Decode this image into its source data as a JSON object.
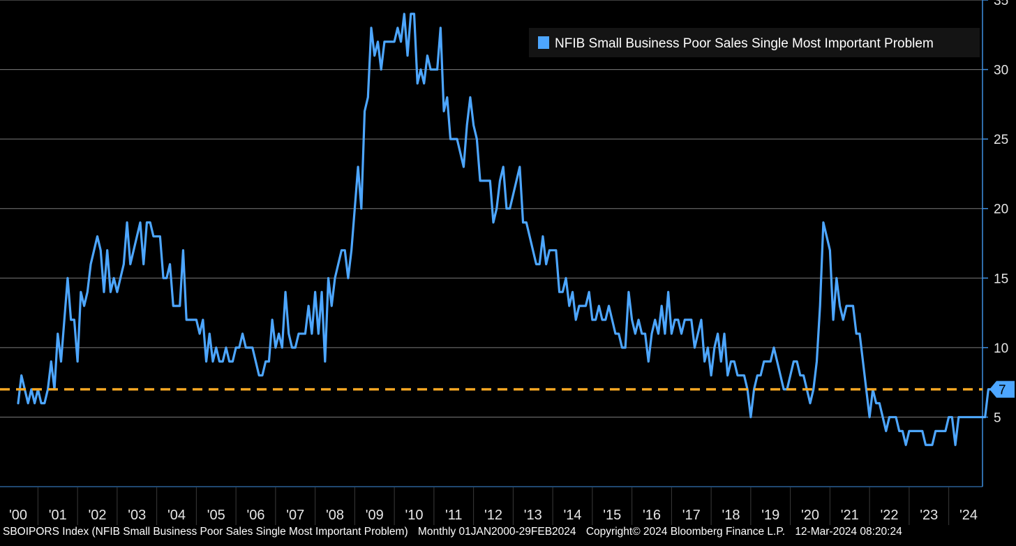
{
  "footer": {
    "ticker": "SBOIPORS Index (NFIB Small Business Poor Sales Single Most Important Problem)",
    "period": "Monthly 01JAN2000-29FEB2024",
    "copyright": "Copyright© 2024 Bloomberg Finance L.P.",
    "timestamp": "12-Mar-2024 08:20:24"
  },
  "colors": {
    "background": "#000000",
    "series": "#4da6ff",
    "reference_line": "#f5a623",
    "grid": "#9a9a9a",
    "axis": "#3f8fe0"
  },
  "chart_data": {
    "type": "line",
    "title": "",
    "xlabel": "",
    "ylabel": "",
    "grid": true,
    "legend_position": "top-right",
    "ylim": [
      0,
      35
    ],
    "y_ticks": [
      5,
      10,
      15,
      20,
      25,
      30,
      35
    ],
    "x_tick_labels": [
      "'00",
      "'01",
      "'02",
      "'03",
      "'04",
      "'05",
      "'06",
      "'07",
      "'08",
      "'09",
      "'10",
      "'11",
      "'12",
      "'13",
      "'14",
      "'15",
      "'16",
      "'17",
      "'18",
      "'19",
      "'20",
      "'21",
      "'22",
      "'23",
      "'24"
    ],
    "reference_line": {
      "value": 7,
      "label": "7",
      "style": "dashed"
    },
    "series": [
      {
        "name": "NFIB Small Business Poor Sales Single Most Important Problem",
        "start": "2000-01",
        "end": "2024-02",
        "frequency": "monthly",
        "values": [
          6,
          8,
          7,
          6,
          7,
          6,
          7,
          6,
          6,
          7,
          9,
          7,
          11,
          9,
          12,
          15,
          12,
          12,
          9,
          14,
          13,
          14,
          16,
          17,
          18,
          17,
          14,
          17,
          14,
          15,
          14,
          15,
          16,
          19,
          16,
          17,
          18,
          19,
          16,
          19,
          19,
          18,
          18,
          18,
          15,
          15,
          16,
          13,
          13,
          13,
          17,
          12,
          12,
          12,
          12,
          11,
          12,
          9,
          11,
          9,
          10,
          9,
          9,
          10,
          9,
          9,
          10,
          10,
          11,
          10,
          10,
          10,
          9,
          8,
          8,
          9,
          9,
          12,
          10,
          11,
          10,
          14,
          11,
          10,
          10,
          11,
          11,
          11,
          13,
          11,
          14,
          11,
          14,
          9,
          15,
          13,
          15,
          16,
          17,
          17,
          15,
          17,
          20,
          23,
          20,
          27,
          28,
          33,
          31,
          32,
          30,
          32,
          32,
          32,
          32,
          33,
          32,
          34,
          31,
          34,
          34,
          29,
          30,
          29,
          31,
          30,
          30,
          30,
          33,
          27,
          28,
          25,
          25,
          25,
          24,
          23,
          26,
          28,
          26,
          25,
          22,
          22,
          22,
          22,
          19,
          20,
          22,
          23,
          20,
          20,
          21,
          22,
          23,
          19,
          19,
          18,
          17,
          16,
          16,
          18,
          16,
          17,
          17,
          17,
          14,
          14,
          15,
          13,
          14,
          12,
          13,
          13,
          13,
          14,
          12,
          12,
          13,
          12,
          12,
          13,
          12,
          11,
          11,
          10,
          10,
          14,
          12,
          11,
          12,
          11,
          11,
          9,
          11,
          12,
          11,
          13,
          11,
          14,
          11,
          12,
          12,
          11,
          12,
          12,
          12,
          10,
          11,
          12,
          9,
          10,
          8,
          10,
          11,
          9,
          11,
          8,
          9,
          9,
          8,
          8,
          8,
          7,
          5,
          7,
          8,
          8,
          9,
          9,
          9,
          10,
          9,
          8,
          7,
          7,
          8,
          9,
          9,
          8,
          8,
          7,
          6,
          7,
          9,
          13,
          19,
          18,
          17,
          12,
          15,
          13,
          12,
          13,
          13,
          13,
          11,
          11,
          9,
          7,
          5,
          7,
          6,
          6,
          5,
          4,
          5,
          5,
          5,
          4,
          4,
          3,
          4,
          4,
          4,
          4,
          4,
          3,
          3,
          3,
          4,
          4,
          4,
          4,
          5,
          5,
          3,
          5,
          5,
          5,
          5,
          5,
          5,
          5,
          5,
          5,
          7,
          7
        ]
      }
    ]
  }
}
